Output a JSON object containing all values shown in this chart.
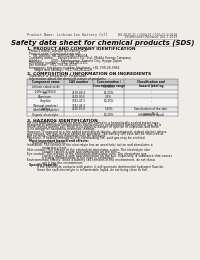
{
  "bg_color": "#f0ede8",
  "header_left": "Product Name: Lithium Ion Battery Cell",
  "header_right_line1": "BU-2020-21 / 2020-21 / 010-01-0-0110",
  "header_right_line2": "Established / Revision: Dec.7.2019",
  "main_title": "Safety data sheet for chemical products (SDS)",
  "section1_title": "1. PRODUCT AND COMPANY IDENTIFICATION",
  "section1_bullets": [
    "  Product name: Lithium Ion Battery Cell",
    "  Product code: Cylindrical-type cell",
    "      SB-18650U, SB-18650L, SB-18650A",
    "  Company name:    Sanyo Electric Co., Ltd., Mobile Energy Company",
    "  Address:         2001, Kamitoyama, Sumoto City, Hyogo, Japan",
    "  Telephone number:   +81-799-26-4111",
    "  Fax number:  +81-799-26-4129",
    "  Emergency telephone number (daytime): +81-799-26-3962",
    "       (Night and holiday): +81-799-26-4129"
  ],
  "section2_title": "2. COMPOSITION / INFORMATION ON INGREDIENTS",
  "section2_sub": "  Substance or preparation: Preparation",
  "section2_sub2": "  Information about the chemical nature of products:",
  "table_headers": [
    "Component name",
    "CAS number",
    "Concentration /\nConcentration range",
    "Classification and\nhazard labeling"
  ],
  "table_rows": [
    [
      "Lithium cobalt oxide\n(LiMn-Co)(NiO4)",
      "-",
      "(30-60%)",
      "-"
    ],
    [
      "Iron",
      "7439-89-6",
      "15-25%",
      "-"
    ],
    [
      "Aluminum",
      "7429-90-5",
      "2-5%",
      "-"
    ],
    [
      "Graphite\n(Natural graphite)\n(Artificial graphite)",
      "7782-42-5\n7782-44-0",
      "10-25%",
      "-"
    ],
    [
      "Copper",
      "7440-50-8",
      "5-10%",
      "Sensitization of the skin\ngroup No.2"
    ],
    [
      "Organic electrolyte",
      "-",
      "10-20%",
      "Inflammable liquid"
    ]
  ],
  "section3_title": "3. HAZARDS IDENTIFICATION",
  "section3_paras": [
    "   For this battery cell, chemical materials are stored in a hermetically sealed metal case, designed to withstand temperatures and pressures encountered during normal use. As a result, during normal use, there is no physical danger of ignition or explosion and there is no danger of hazardous materials leakage.",
    "   However, if exposed to a fire added mechanical shocks, decomposed, violent electric whose any misuse, the gas release cannot be operated. The battery cell case will be fractured at the extreme, hazardous materials may be released.",
    "   Moreover, if heated strongly by the surrounding fire, acid gas may be emitted."
  ],
  "bullet1": "  Most important hazard and effects:",
  "health_label": "     Human health effects:",
  "health_items": [
    "          Inhalation: The release of the electrolyte has an anesthetic action and stimulates a respiratory tract.",
    "          Skin contact: The release of the electrolyte stimulates a skin. The electrolyte skin contact causes a sore and stimulation on the skin.",
    "          Eye contact: The release of the electrolyte stimulates eyes. The electrolyte eye contact causes a sore and stimulation on the eye. Especially, a substance that causes a strong inflammation of the eyes is contained.",
    "          Environmental effects: Since a battery cell remains in the environment, do not throw out it into the environment."
  ],
  "bullet2": "  Specific hazards:",
  "specific_items": [
    "          If the electrolyte contacts with water, it will generate detrimental hydrogen fluoride.",
    "          Since the said electrolyte is inflammable liquid, do not bring close to fire."
  ]
}
